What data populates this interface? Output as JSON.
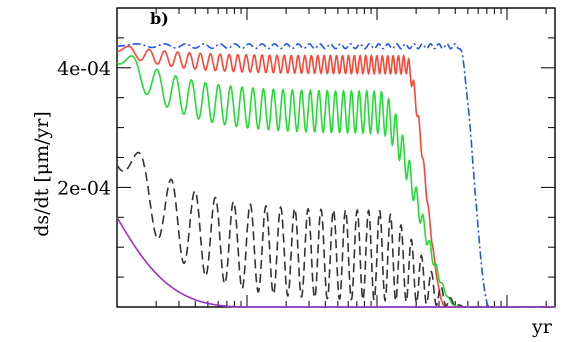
{
  "chart_data": {
    "type": "line",
    "panel_label": "b)",
    "xlabel": "yr",
    "ylabel": "ds/dt [μm/yr]",
    "x_scale": "log",
    "ylim": [
      0,
      0.0005
    ],
    "yticks": [
      {
        "value": 0.0002,
        "label": "2e-04"
      },
      {
        "value": 0.0004,
        "label": "4e-04"
      }
    ],
    "series": [
      {
        "color": "#2255ee",
        "style": "dashdot",
        "start": 0.00044,
        "base": 0.00044,
        "amp": 8e-06,
        "period": 0.05,
        "fall_start": 0.78,
        "fall_end": 0.85
      },
      {
        "color": "#ff4433",
        "style": "solid",
        "start": 0.00044,
        "base": 0.00042,
        "amp": 3e-05,
        "period": 0.03,
        "fall_start": 0.66,
        "fall_end": 0.75
      },
      {
        "color": "#22dd33",
        "style": "solid",
        "start": 0.00044,
        "base": 0.00036,
        "amp": 7e-05,
        "period": 0.04,
        "fall_start": 0.6,
        "fall_end": 0.78
      },
      {
        "color": "#333333",
        "style": "dashed",
        "start": 0.00031,
        "base": 0.00016,
        "amp": 0.00015,
        "period": 0.06,
        "fall_start": 0.6,
        "fall_end": 0.8
      },
      {
        "color": "#9933cc",
        "style": "solid",
        "start": 0.00015,
        "base": 0.0,
        "amp": 0.0,
        "period": 0.1,
        "fall_start": 0.0,
        "fall_end": 0.3
      }
    ]
  }
}
